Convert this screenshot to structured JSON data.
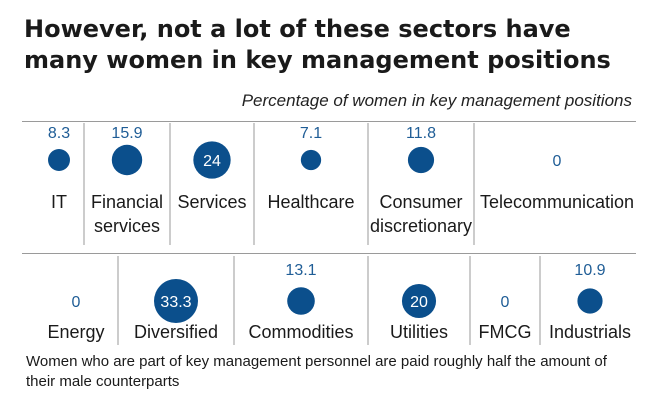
{
  "title": "However, not a lot of these sectors have many women in key management positions",
  "subtitle": "Percentage of women in key management positions",
  "footnote": "Women who are part of key management personnel are paid roughly half the amount of their male counterparts",
  "colors": {
    "bubble": "#0b4f8c",
    "value_text": "#1f5d96",
    "divider": "#9a9a9a"
  },
  "chart_data": {
    "type": "bubble",
    "series": [
      {
        "name": "IT",
        "value": 8.3,
        "row": 1
      },
      {
        "name": "Financial services",
        "value": 15.9,
        "row": 1
      },
      {
        "name": "Services",
        "value": 24,
        "row": 1
      },
      {
        "name": "Healthcare",
        "value": 7.1,
        "row": 1
      },
      {
        "name": "Consumer discretionary",
        "value": 11.8,
        "row": 1
      },
      {
        "name": "Telecommunication",
        "value": 0,
        "row": 1
      },
      {
        "name": "Energy",
        "value": 0,
        "row": 2
      },
      {
        "name": "Diversified",
        "value": 33.3,
        "row": 2
      },
      {
        "name": "Commodities",
        "value": 13.1,
        "row": 2
      },
      {
        "name": "Utilities",
        "value": 20,
        "row": 2
      },
      {
        "name": "FMCG",
        "value": 0,
        "row": 2
      },
      {
        "name": "Industrials",
        "value": 10.9,
        "row": 2
      }
    ]
  }
}
